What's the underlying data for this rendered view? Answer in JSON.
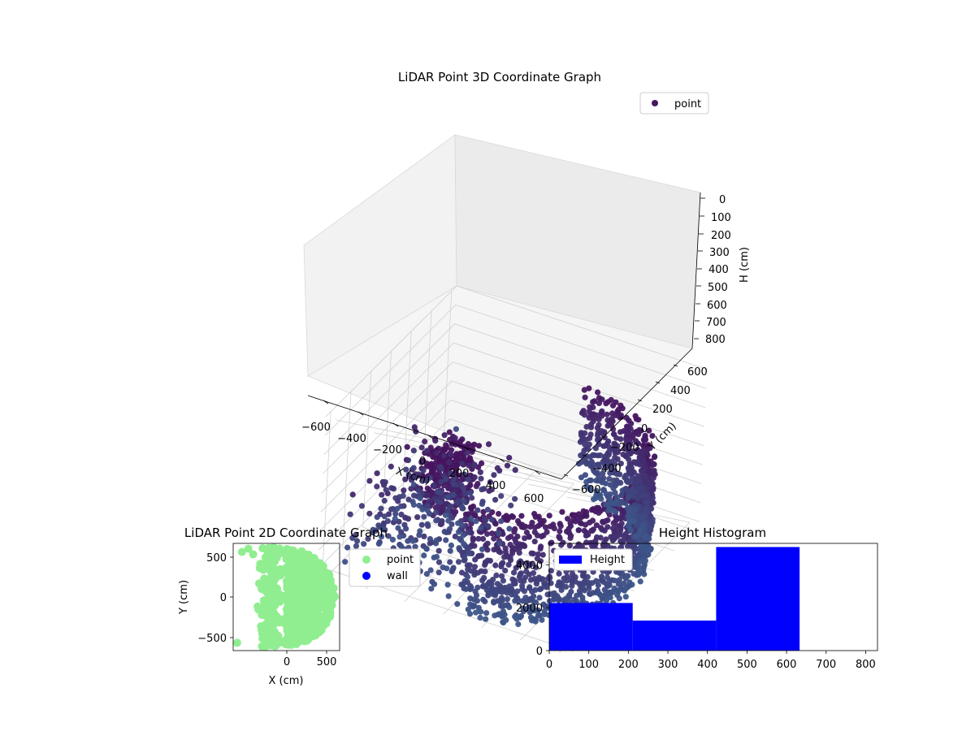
{
  "chart_data": [
    {
      "type": "scatter",
      "projection": "3d",
      "title": "LiDAR Point 3D Coordinate Graph",
      "xlabel": "X (cm)",
      "ylabel": "Y (cm)",
      "zlabel": "H (cm)",
      "xticks": [
        "−600",
        "−400",
        "−200",
        "0",
        "200",
        "400",
        "600"
      ],
      "yticks": [
        "−600",
        "−400",
        "−200",
        "0",
        "200",
        "400",
        "600"
      ],
      "zticks": [
        "0",
        "100",
        "200",
        "300",
        "400",
        "500",
        "600",
        "700",
        "800"
      ],
      "xlim": [
        -650,
        650
      ],
      "ylim": [
        -650,
        650
      ],
      "zlim": [
        0,
        820
      ],
      "zaxis_inverted": true,
      "grid": true,
      "legend": {
        "placement": "top-right",
        "entries": [
          "point"
        ]
      },
      "series": [
        {
          "name": "point",
          "colormap": "viridis",
          "color": "#44195f",
          "shape": "ring of points (radius ≈ 560–620 cm) over roughly the right half-plane X > 0, heights ≈ 250–820 cm, plus sparse outliers toward X < 0",
          "outliers": [
            {
              "x": -600,
              "y": -620,
              "h": 720
            },
            {
              "x": 600,
              "y": 560,
              "h": 640
            },
            {
              "x": -300,
              "y": 500,
              "h": 120
            },
            {
              "x": -280,
              "y": 540,
              "h": 160
            }
          ]
        }
      ]
    },
    {
      "type": "scatter",
      "title": "LiDAR Point 2D Coordinate Graph",
      "xlabel": "X (cm)",
      "ylabel": "Y (cm)",
      "xticks": [
        "0",
        "500"
      ],
      "yticks": [
        "500",
        "0",
        "−500"
      ],
      "xlim": [
        -660,
        660
      ],
      "ylim": [
        -660,
        660
      ],
      "legend": {
        "placement": "outside-right",
        "entries": [
          "point",
          "wall"
        ]
      },
      "series": [
        {
          "name": "point",
          "color": "#90ee90",
          "shape": "filled half-disk, X ≥ about −300 cm, radius ≈ 600 cm, with ragged left edge and scattered points to X ≈ −620"
        },
        {
          "name": "wall",
          "color": "#0000ff",
          "count": 0
        }
      ]
    },
    {
      "type": "bar",
      "subtype": "histogram",
      "title": "Height Histogram",
      "xlabel": "",
      "ylabel": "",
      "xticks": [
        "0",
        "100",
        "200",
        "300",
        "400",
        "500",
        "600",
        "700",
        "800"
      ],
      "yticks": [
        "0",
        "2000",
        "4000"
      ],
      "xlim": [
        0,
        830
      ],
      "ylim": [
        0,
        5000
      ],
      "legend": {
        "placement": "top-left",
        "entries": [
          "Height"
        ]
      },
      "bins": [
        {
          "start": 0,
          "end": 211,
          "count": 2220
        },
        {
          "start": 211,
          "end": 422,
          "count": 1400
        },
        {
          "start": 422,
          "end": 633,
          "count": 4830
        },
        {
          "start": 633,
          "end": 844,
          "count": 0
        }
      ],
      "series": [
        {
          "name": "Height",
          "color": "#0000ff"
        }
      ]
    }
  ]
}
